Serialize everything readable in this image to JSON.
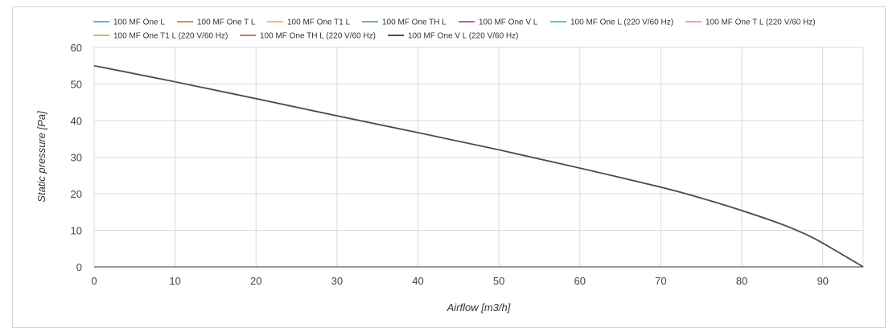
{
  "chart_data": {
    "type": "line",
    "xlabel": "Airflow [m3/h]",
    "ylabel": "Static pressure [Pa]",
    "xlim": [
      0,
      95
    ],
    "ylim": [
      0,
      60
    ],
    "x_ticks": [
      0,
      10,
      20,
      30,
      40,
      50,
      60,
      70,
      80,
      90
    ],
    "y_ticks": [
      0,
      10,
      20,
      30,
      40,
      50,
      60
    ],
    "grid": true,
    "legend_position": "top",
    "series": [
      {
        "name": "100 MF One L",
        "color": "#7aa6e0"
      },
      {
        "name": "100 MF One T L",
        "color": "#e8826f"
      },
      {
        "name": "100 MF One T1 L",
        "color": "#f2c15a"
      },
      {
        "name": "100 MF One TH L",
        "color": "#6fbf73"
      },
      {
        "name": "100 MF One V L",
        "color": "#b05fb8"
      },
      {
        "name": "100 MF One L (220 V/60 Hz)",
        "color": "#5cc4d6"
      },
      {
        "name": "100 MF One T L (220 V/60 Hz)",
        "color": "#f2a0b4"
      },
      {
        "name": "100 MF One T1 L (220 V/60 Hz)",
        "color": "#9ed36a"
      },
      {
        "name": "100 MF One TH L (220 V/60 Hz)",
        "color": "#e86a6a"
      },
      {
        "name": "100 MF One V L (220 V/60 Hz)",
        "color": "#4a4a5e"
      }
    ],
    "curve": {
      "x": [
        0,
        10,
        20,
        30,
        40,
        50,
        60,
        70,
        75,
        80,
        85,
        88,
        90,
        95
      ],
      "y": [
        55,
        50.6,
        46,
        41.3,
        36.7,
        32,
        27,
        21.8,
        18.8,
        15.4,
        11.6,
        8.8,
        6.5,
        0
      ]
    }
  }
}
